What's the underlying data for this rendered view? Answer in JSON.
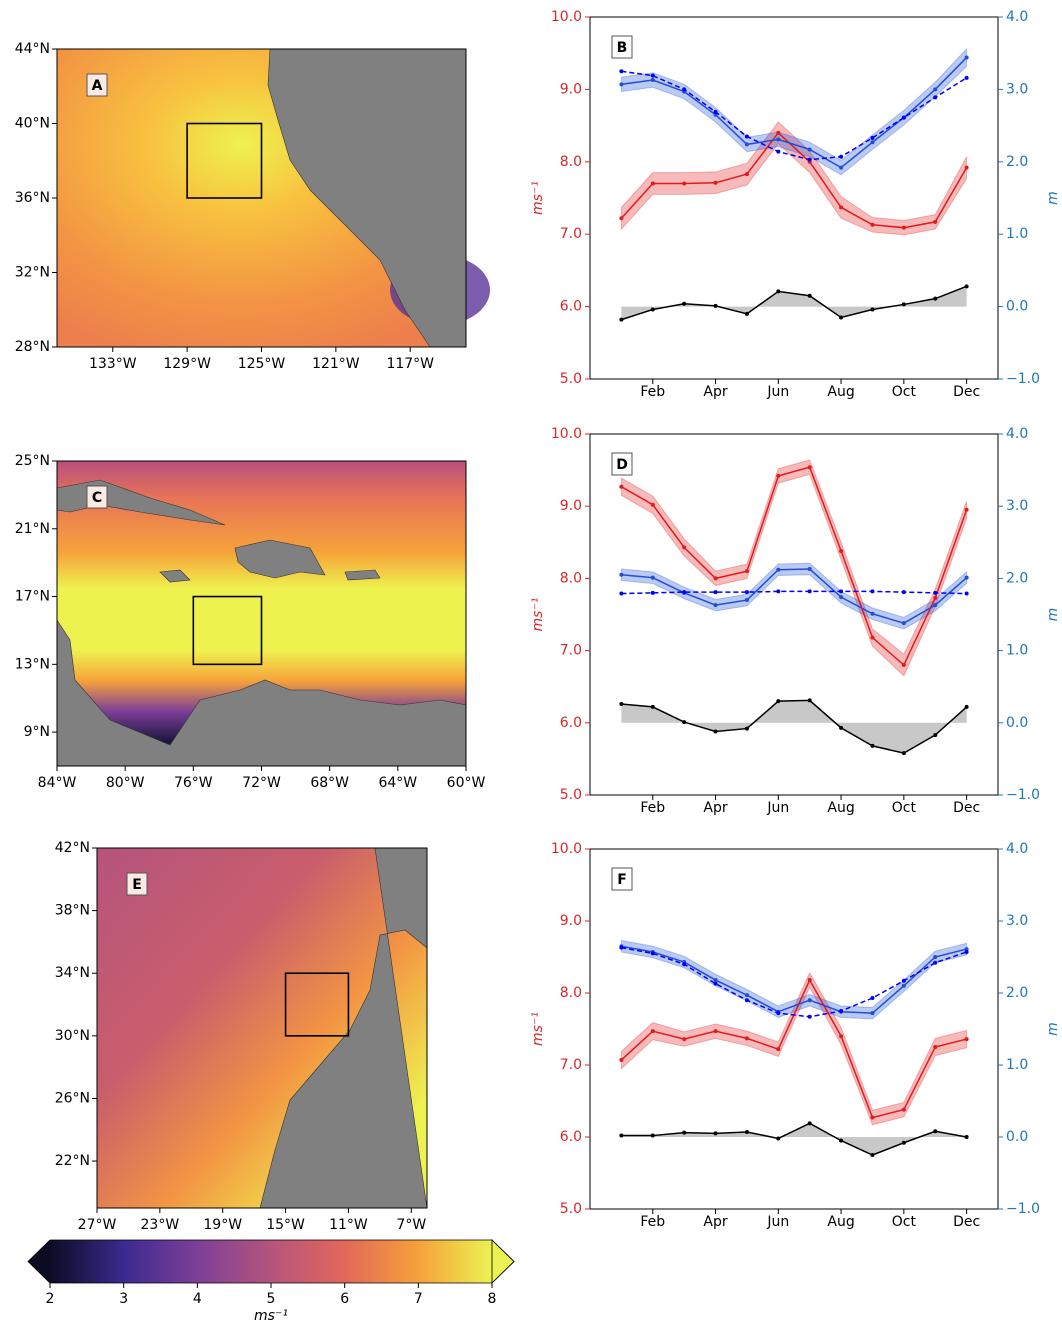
{
  "chart_data": [
    {
      "type": "map",
      "label": "A",
      "xlim": [
        -136,
        -114
      ],
      "ylim": [
        28,
        44
      ],
      "xticks": [
        {
          "value": -133,
          "label": "133°W"
        },
        {
          "value": -129,
          "label": "129°W"
        },
        {
          "value": -125,
          "label": "125°W"
        },
        {
          "value": -121,
          "label": "121°W"
        },
        {
          "value": -117,
          "label": "117°W"
        }
      ],
      "yticks": [
        {
          "value": 28,
          "label": "28°N"
        },
        {
          "value": 32,
          "label": "32°N"
        },
        {
          "value": 36,
          "label": "36°N"
        },
        {
          "value": 40,
          "label": "40°N"
        },
        {
          "value": 44,
          "label": "44°N"
        }
      ],
      "box": {
        "x": [
          -129,
          -125
        ],
        "y": [
          36,
          40
        ]
      }
    },
    {
      "type": "line",
      "label": "B",
      "ylabel": "ms⁻¹",
      "y2label": "m",
      "y_color": "#d62728",
      "y2_color": "#1f77b4",
      "categories": [
        null,
        "Feb",
        null,
        "Apr",
        null,
        "Jun",
        null,
        "Aug",
        null,
        "Oct",
        null,
        "Dec"
      ],
      "ylim": [
        5,
        10
      ],
      "yticks": [
        {
          "value": 5,
          "label": "5.0"
        },
        {
          "value": 6,
          "label": "6.0"
        },
        {
          "value": 7,
          "label": "7.0"
        },
        {
          "value": 8,
          "label": "8.0"
        },
        {
          "value": 9,
          "label": "9.0"
        },
        {
          "value": 10,
          "label": "10.0"
        }
      ],
      "y2lim": [
        -1,
        4
      ],
      "y2ticks": [
        {
          "value": -1,
          "label": "−1.0"
        },
        {
          "value": 0,
          "label": "0.0"
        },
        {
          "value": 1,
          "label": "1.0"
        },
        {
          "value": 2,
          "label": "2.0"
        },
        {
          "value": 3,
          "label": "3.0"
        },
        {
          "value": 4,
          "label": "4.0"
        }
      ],
      "series": [
        {
          "color": "#e31a1c",
          "values": [
            7.22,
            7.7,
            7.7,
            7.71,
            7.83,
            8.4,
            8.0,
            7.37,
            7.13,
            7.09,
            7.17,
            7.92
          ],
          "errors": [
            0.15,
            0.15,
            0.15,
            0.15,
            0.15,
            0.15,
            0.15,
            0.15,
            0.1,
            0.1,
            0.1,
            0.15
          ]
        },
        {
          "color": "#1f4fd8",
          "axis": "y2",
          "values": [
            3.07,
            3.13,
            2.97,
            2.65,
            2.24,
            2.31,
            2.17,
            1.92,
            2.27,
            2.61,
            3.0,
            3.44
          ],
          "errors": [
            0.1,
            0.1,
            0.1,
            0.1,
            0.1,
            0.1,
            0.1,
            0.1,
            0.1,
            0.1,
            0.1,
            0.12
          ]
        },
        {
          "color": "#0000ff",
          "axis": "y2",
          "linestyle": "dashed",
          "values": [
            3.25,
            3.19,
            3.0,
            2.69,
            2.35,
            2.14,
            2.03,
            2.07,
            2.33,
            2.61,
            2.89,
            3.16
          ]
        },
        {
          "color": "#000000",
          "axis": "y2",
          "fill": "#c8c8c8",
          "values": [
            -0.18,
            -0.04,
            0.04,
            0.01,
            -0.1,
            0.21,
            0.15,
            -0.15,
            -0.04,
            0.03,
            0.11,
            0.28
          ]
        }
      ]
    },
    {
      "type": "map",
      "label": "C",
      "xlim": [
        -84,
        -60
      ],
      "ylim": [
        7,
        25
      ],
      "xticks": [
        {
          "value": -84,
          "label": "84°W"
        },
        {
          "value": -80,
          "label": "80°W"
        },
        {
          "value": -76,
          "label": "76°W"
        },
        {
          "value": -72,
          "label": "72°W"
        },
        {
          "value": -68,
          "label": "68°W"
        },
        {
          "value": -64,
          "label": "64°W"
        },
        {
          "value": -60,
          "label": "60°W"
        }
      ],
      "yticks": [
        {
          "value": 9,
          "label": "9°N"
        },
        {
          "value": 13,
          "label": "13°N"
        },
        {
          "value": 17,
          "label": "17°N"
        },
        {
          "value": 21,
          "label": "21°N"
        },
        {
          "value": 25,
          "label": "25°N"
        }
      ],
      "box": {
        "x": [
          -76,
          -72
        ],
        "y": [
          13,
          17
        ]
      }
    },
    {
      "type": "line",
      "label": "D",
      "ylabel": "ms⁻¹",
      "y2label": "m",
      "y_color": "#d62728",
      "y2_color": "#1f77b4",
      "categories": [
        null,
        "Feb",
        null,
        "Apr",
        null,
        "Jun",
        null,
        "Aug",
        null,
        "Oct",
        null,
        "Dec"
      ],
      "ylim": [
        5,
        10
      ],
      "yticks": [
        {
          "value": 5,
          "label": "5.0"
        },
        {
          "value": 6,
          "label": "6.0"
        },
        {
          "value": 7,
          "label": "7.0"
        },
        {
          "value": 8,
          "label": "8.0"
        },
        {
          "value": 9,
          "label": "9.0"
        },
        {
          "value": 10,
          "label": "10.0"
        }
      ],
      "y2lim": [
        -1,
        4
      ],
      "y2ticks": [
        {
          "value": -1,
          "label": "−1.0"
        },
        {
          "value": 0,
          "label": "0.0"
        },
        {
          "value": 1,
          "label": "1.0"
        },
        {
          "value": 2,
          "label": "2.0"
        },
        {
          "value": 3,
          "label": "3.0"
        },
        {
          "value": 4,
          "label": "4.0"
        }
      ],
      "series": [
        {
          "color": "#e31a1c",
          "values": [
            9.27,
            9.02,
            8.43,
            8.0,
            8.1,
            9.42,
            9.54,
            8.38,
            7.18,
            6.8,
            7.73,
            8.95
          ],
          "errors": [
            0.12,
            0.12,
            0.12,
            0.1,
            0.1,
            0.1,
            0.1,
            0.12,
            0.12,
            0.15,
            0.12,
            0.12
          ]
        },
        {
          "color": "#1f4fd8",
          "axis": "y2",
          "values": [
            2.05,
            2.01,
            1.8,
            1.63,
            1.7,
            2.12,
            2.13,
            1.74,
            1.51,
            1.38,
            1.63,
            2.01
          ],
          "errors": [
            0.08,
            0.08,
            0.08,
            0.08,
            0.08,
            0.08,
            0.08,
            0.08,
            0.08,
            0.08,
            0.08,
            0.08
          ]
        },
        {
          "color": "#0000ff",
          "axis": "y2",
          "linestyle": "dashed",
          "values": [
            1.79,
            1.8,
            1.81,
            1.81,
            1.81,
            1.82,
            1.82,
            1.82,
            1.82,
            1.81,
            1.8,
            1.79
          ]
        },
        {
          "color": "#000000",
          "axis": "y2",
          "fill": "#c8c8c8",
          "values": [
            0.26,
            0.22,
            0.01,
            -0.12,
            -0.08,
            0.3,
            0.31,
            -0.07,
            -0.32,
            -0.42,
            -0.17,
            0.22
          ]
        }
      ]
    },
    {
      "type": "map",
      "label": "E",
      "xlim": [
        -27,
        -6
      ],
      "ylim": [
        19,
        42
      ],
      "xticks": [
        {
          "value": -27,
          "label": "27°W"
        },
        {
          "value": -23,
          "label": "23°W"
        },
        {
          "value": -19,
          "label": "19°W"
        },
        {
          "value": -15,
          "label": "15°W"
        },
        {
          "value": -11,
          "label": "11°W"
        },
        {
          "value": -7,
          "label": "7°W"
        }
      ],
      "yticks": [
        {
          "value": 22,
          "label": "22°N"
        },
        {
          "value": 26,
          "label": "26°N"
        },
        {
          "value": 30,
          "label": "30°N"
        },
        {
          "value": 34,
          "label": "34°N"
        },
        {
          "value": 38,
          "label": "38°N"
        },
        {
          "value": 42,
          "label": "42°N"
        }
      ],
      "box": {
        "x": [
          -15,
          -11
        ],
        "y": [
          30,
          34
        ]
      }
    },
    {
      "type": "line",
      "label": "F",
      "ylabel": "ms⁻¹",
      "y2label": "m",
      "y_color": "#d62728",
      "y2_color": "#1f77b4",
      "categories": [
        null,
        "Feb",
        null,
        "Apr",
        null,
        "Jun",
        null,
        "Aug",
        null,
        "Oct",
        null,
        "Dec"
      ],
      "ylim": [
        5,
        10
      ],
      "yticks": [
        {
          "value": 5,
          "label": "5.0"
        },
        {
          "value": 6,
          "label": "6.0"
        },
        {
          "value": 7,
          "label": "7.0"
        },
        {
          "value": 8,
          "label": "8.0"
        },
        {
          "value": 9,
          "label": "9.0"
        },
        {
          "value": 10,
          "label": "10.0"
        }
      ],
      "y2lim": [
        -1,
        4
      ],
      "y2ticks": [
        {
          "value": -1,
          "label": "−1.0"
        },
        {
          "value": 0,
          "label": "0.0"
        },
        {
          "value": 1,
          "label": "1.0"
        },
        {
          "value": 2,
          "label": "2.0"
        },
        {
          "value": 3,
          "label": "3.0"
        },
        {
          "value": 4,
          "label": "4.0"
        }
      ],
      "series": [
        {
          "color": "#e31a1c",
          "values": [
            7.07,
            7.47,
            7.36,
            7.47,
            7.37,
            7.22,
            8.18,
            7.4,
            6.27,
            6.38,
            7.25,
            7.36
          ],
          "errors": [
            0.12,
            0.12,
            0.1,
            0.1,
            0.1,
            0.1,
            0.1,
            0.12,
            0.1,
            0.1,
            0.12,
            0.12
          ]
        },
        {
          "color": "#1f4fd8",
          "axis": "y2",
          "values": [
            2.65,
            2.57,
            2.43,
            2.18,
            1.97,
            1.74,
            1.9,
            1.74,
            1.72,
            2.1,
            2.5,
            2.61
          ],
          "errors": [
            0.08,
            0.08,
            0.08,
            0.08,
            0.08,
            0.08,
            0.08,
            0.08,
            0.08,
            0.08,
            0.08,
            0.08
          ]
        },
        {
          "color": "#0000ff",
          "axis": "y2",
          "linestyle": "dashed",
          "values": [
            2.63,
            2.55,
            2.4,
            2.13,
            1.9,
            1.72,
            1.67,
            1.75,
            1.93,
            2.17,
            2.42,
            2.57
          ]
        },
        {
          "color": "#000000",
          "axis": "y2",
          "fill": "#c8c8c8",
          "values": [
            0.02,
            0.02,
            0.06,
            0.05,
            0.07,
            -0.02,
            0.19,
            -0.05,
            -0.25,
            -0.08,
            0.08,
            0.0
          ]
        }
      ]
    },
    {
      "type": "colorbar",
      "label": "ms⁻¹",
      "xlim": [
        2,
        8
      ],
      "xticks": [
        2,
        3,
        4,
        5,
        6,
        7,
        8
      ],
      "colors": [
        "#0b0c24",
        "#3b2a8f",
        "#7d3f98",
        "#b5547c",
        "#e2685a",
        "#f6a13a",
        "#ecf251"
      ]
    }
  ]
}
